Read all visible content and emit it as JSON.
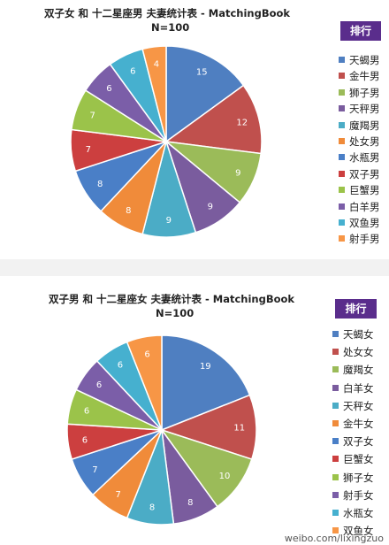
{
  "chart_data": [
    {
      "type": "pie",
      "title": "双子女 和 十二星座男 夫妻统计表 - MatchingBook",
      "subtitle": "N=100",
      "legend_title": "排行",
      "legend_placement": "right",
      "slices": [
        {
          "label": "天蝎男",
          "value": 15,
          "color": "#4f7fc1"
        },
        {
          "label": "金牛男",
          "value": 12,
          "color": "#c0504d"
        },
        {
          "label": "狮子男",
          "value": 9,
          "color": "#9bbb59"
        },
        {
          "label": "天秤男",
          "value": 9,
          "color": "#7a5c9e"
        },
        {
          "label": "魔羯男",
          "value": 9,
          "color": "#4bacc6"
        },
        {
          "label": "处女男",
          "value": 8,
          "color": "#f08b3a"
        },
        {
          "label": "水瓶男",
          "value": 8,
          "color": "#4a7fc7"
        },
        {
          "label": "双子男",
          "value": 7,
          "color": "#cc3f3f"
        },
        {
          "label": "巨蟹男",
          "value": 7,
          "color": "#9bc34a"
        },
        {
          "label": "白羊男",
          "value": 6,
          "color": "#7b5ea8"
        },
        {
          "label": "双鱼男",
          "value": 6,
          "color": "#46b0cf"
        },
        {
          "label": "射手男",
          "value": 4,
          "color": "#f79646"
        }
      ]
    },
    {
      "type": "pie",
      "title": "双子男 和 十二星座女 夫妻统计表 - MatchingBook",
      "subtitle": "N=100",
      "legend_title": "排行",
      "legend_placement": "right",
      "slices": [
        {
          "label": "天蝎女",
          "value": 19,
          "color": "#4f7fc1"
        },
        {
          "label": "处女女",
          "value": 11,
          "color": "#c0504d"
        },
        {
          "label": "魔羯女",
          "value": 10,
          "color": "#9bbb59"
        },
        {
          "label": "白羊女",
          "value": 8,
          "color": "#7a5c9e"
        },
        {
          "label": "天秤女",
          "value": 8,
          "color": "#4bacc6"
        },
        {
          "label": "金牛女",
          "value": 7,
          "color": "#f08b3a"
        },
        {
          "label": "双子女",
          "value": 7,
          "color": "#4a7fc7"
        },
        {
          "label": "巨蟹女",
          "value": 6,
          "color": "#cc3f3f"
        },
        {
          "label": "狮子女",
          "value": 6,
          "color": "#9bc34a"
        },
        {
          "label": "射手女",
          "value": 6,
          "color": "#7b5ea8"
        },
        {
          "label": "水瓶女",
          "value": 6,
          "color": "#46b0cf"
        },
        {
          "label": "双鱼女",
          "value": 6,
          "color": "#f79646"
        }
      ]
    }
  ],
  "watermark": "weibo.com/lixingzuo"
}
